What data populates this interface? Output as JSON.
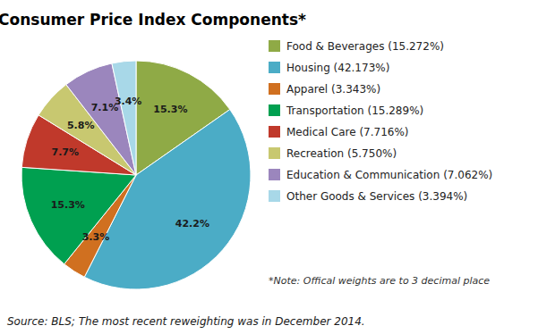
{
  "chart_data": {
    "type": "pie",
    "title": "Consumer Price Index Components*",
    "categories": [
      "Food & Beverages (15.272%)",
      "Housing (42.173%)",
      "Apparel (3.343%)",
      "Transportation (15.289%)",
      "Medical Care (7.716%)",
      "Recreation (5.750%)",
      "Education & Communication (7.062%)",
      "Other Goods & Services (3.394%)"
    ],
    "values": [
      15.272,
      42.173,
      3.343,
      15.289,
      7.716,
      5.75,
      7.062,
      3.394
    ],
    "value_labels": [
      "15.3%",
      "42.2%",
      "3.3%",
      "15.3%",
      "7.7%",
      "5.8%",
      "7.1%",
      "3.4%"
    ],
    "colors": [
      "#8faa46",
      "#4bacc6",
      "#d07020",
      "#00a050",
      "#c0392b",
      "#c8c870",
      "#9b86bd",
      "#a8d8e8"
    ],
    "data_labels": true,
    "legend": "right",
    "annotations": [
      "*Note: Offical weights are to 3 decimal place",
      "Source: BLS; The most recent reweighting was in December 2014."
    ]
  }
}
